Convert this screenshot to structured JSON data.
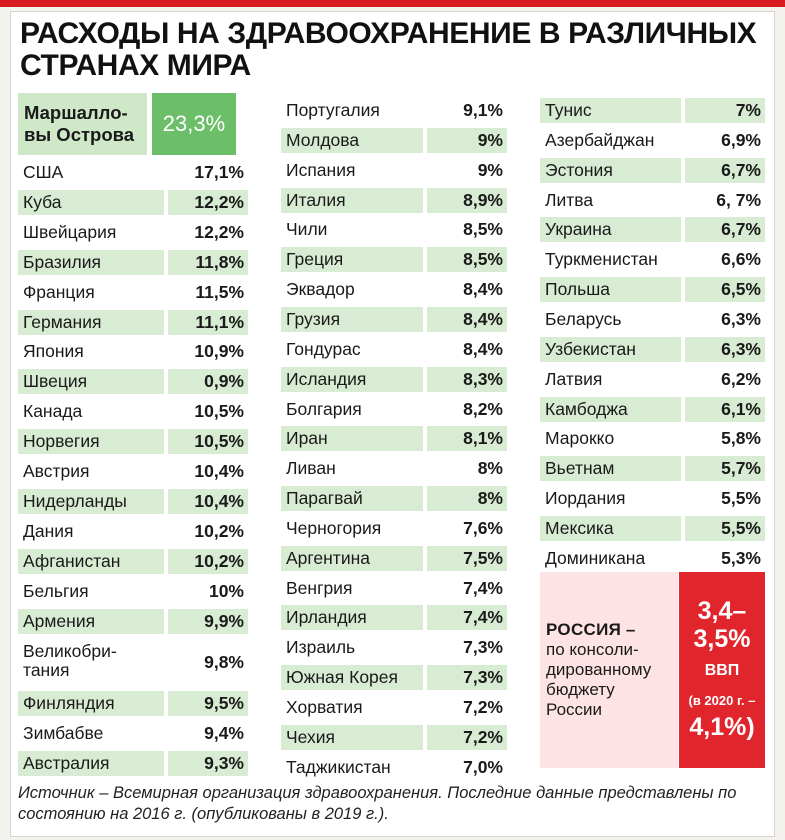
{
  "title": "РАСХОДЫ НА ЗДРАВООХРАНЕНИЕ В РАЗЛИЧНЫХ СТРАНАХ МИРА",
  "chart_data": {
    "type": "table",
    "unit": "%",
    "highlight": {
      "country": "Маршалловы Острова",
      "country_display": "Маршалло-\nвы Острова",
      "value_label": "23,3%",
      "value": 23.3
    },
    "columns": [
      [
        {
          "country": "США",
          "value": 17.1,
          "label": "17,1%",
          "shaded": false
        },
        {
          "country": "Куба",
          "value": 12.2,
          "label": "12,2%",
          "shaded": true
        },
        {
          "country": "Швейцария",
          "value": 12.2,
          "label": "12,2%",
          "shaded": false
        },
        {
          "country": "Бразилия",
          "value": 11.8,
          "label": "11,8%",
          "shaded": true
        },
        {
          "country": "Франция",
          "value": 11.5,
          "label": "11,5%",
          "shaded": false
        },
        {
          "country": "Германия",
          "value": 11.1,
          "label": "11,1%",
          "shaded": true
        },
        {
          "country": "Япония",
          "value": 10.9,
          "label": "10,9%",
          "shaded": false
        },
        {
          "country": "Швеция",
          "value": 0.9,
          "label": "0,9%",
          "shaded": true
        },
        {
          "country": "Канада",
          "value": 10.5,
          "label": "10,5%",
          "shaded": false
        },
        {
          "country": "Норвегия",
          "value": 10.5,
          "label": "10,5%",
          "shaded": true
        },
        {
          "country": "Австрия",
          "value": 10.4,
          "label": "10,4%",
          "shaded": false
        },
        {
          "country": "Нидерланды",
          "value": 10.4,
          "label": "10,4%",
          "shaded": true
        },
        {
          "country": "Дания",
          "value": 10.2,
          "label": "10,2%",
          "shaded": false
        },
        {
          "country": "Афганистан",
          "value": 10.2,
          "label": "10,2%",
          "shaded": true
        },
        {
          "country": "Бельгия",
          "value": 10,
          "label": "10%",
          "shaded": false
        },
        {
          "country": "Армения",
          "value": 9.9,
          "label": "9,9%",
          "shaded": true
        },
        {
          "country": "Великобри-\nтания",
          "value": 9.8,
          "label": "9,8%",
          "shaded": false,
          "two_line": true
        },
        {
          "country": "Финляндия",
          "value": 9.5,
          "label": "9,5%",
          "shaded": true
        },
        {
          "country": "Зимбабве",
          "value": 9.4,
          "label": "9,4%",
          "shaded": false
        },
        {
          "country": "Австралия",
          "value": 9.3,
          "label": "9,3%",
          "shaded": true
        }
      ],
      [
        {
          "country": "Португалия",
          "value": 9.1,
          "label": "9,1%",
          "shaded": false
        },
        {
          "country": "Молдова",
          "value": 9,
          "label": "9%",
          "shaded": true
        },
        {
          "country": "Испания",
          "value": 9,
          "label": "9%",
          "shaded": false
        },
        {
          "country": "Италия",
          "value": 8.9,
          "label": "8,9%",
          "shaded": true
        },
        {
          "country": "Чили",
          "value": 8.5,
          "label": "8,5%",
          "shaded": false
        },
        {
          "country": "Греция",
          "value": 8.5,
          "label": "8,5%",
          "shaded": true
        },
        {
          "country": "Эквадор",
          "value": 8.4,
          "label": "8,4%",
          "shaded": false
        },
        {
          "country": "Грузия",
          "value": 8.4,
          "label": "8,4%",
          "shaded": true
        },
        {
          "country": "Гондурас",
          "value": 8.4,
          "label": "8,4%",
          "shaded": false
        },
        {
          "country": "Исландия",
          "value": 8.3,
          "label": "8,3%",
          "shaded": true
        },
        {
          "country": "Болгария",
          "value": 8.2,
          "label": "8,2%",
          "shaded": false
        },
        {
          "country": "Иран",
          "value": 8.1,
          "label": "8,1%",
          "shaded": true
        },
        {
          "country": "Ливан",
          "value": 8,
          "label": "8%",
          "shaded": false
        },
        {
          "country": "Парагвай",
          "value": 8,
          "label": "8%",
          "shaded": true
        },
        {
          "country": "Черногория",
          "value": 7.6,
          "label": "7,6%",
          "shaded": false
        },
        {
          "country": "Аргентина",
          "value": 7.5,
          "label": "7,5%",
          "shaded": true
        },
        {
          "country": "Венгрия",
          "value": 7.4,
          "label": "7,4%",
          "shaded": false
        },
        {
          "country": "Ирландия",
          "value": 7.4,
          "label": "7,4%",
          "shaded": true
        },
        {
          "country": "Израиль",
          "value": 7.3,
          "label": "7,3%",
          "shaded": false
        },
        {
          "country": "Южная Корея",
          "value": 7.3,
          "label": "7,3%",
          "shaded": true
        },
        {
          "country": "Хорватия",
          "value": 7.2,
          "label": "7,2%",
          "shaded": false
        },
        {
          "country": "Чехия",
          "value": 7.2,
          "label": "7,2%",
          "shaded": true
        },
        {
          "country": "Таджикистан",
          "value": 7.0,
          "label": "7,0%",
          "shaded": false
        }
      ],
      [
        {
          "country": "Тунис",
          "value": 7,
          "label": "7%",
          "shaded": true
        },
        {
          "country": "Азербайджан",
          "value": 6.9,
          "label": "6,9%",
          "shaded": false
        },
        {
          "country": "Эстония",
          "value": 6.7,
          "label": "6,7%",
          "shaded": true
        },
        {
          "country": "Литва",
          "value": 6.7,
          "label": "6, 7%",
          "shaded": false
        },
        {
          "country": "Украина",
          "value": 6.7,
          "label": "6,7%",
          "shaded": true
        },
        {
          "country": "Туркменистан",
          "value": 6.6,
          "label": "6,6%",
          "shaded": false
        },
        {
          "country": "Польша",
          "value": 6.5,
          "label": "6,5%",
          "shaded": true
        },
        {
          "country": "Беларусь",
          "value": 6.3,
          "label": "6,3%",
          "shaded": false
        },
        {
          "country": "Узбекистан",
          "value": 6.3,
          "label": "6,3%",
          "shaded": true
        },
        {
          "country": "Латвия",
          "value": 6.2,
          "label": "6,2%",
          "shaded": false
        },
        {
          "country": "Камбоджа",
          "value": 6.1,
          "label": "6,1%",
          "shaded": true
        },
        {
          "country": "Марокко",
          "value": 5.8,
          "label": "5,8%",
          "shaded": false
        },
        {
          "country": "Вьетнам",
          "value": 5.7,
          "label": "5,7%",
          "shaded": true
        },
        {
          "country": "Иордания",
          "value": 5.5,
          "label": "5,5%",
          "shaded": false
        },
        {
          "country": "Мексика",
          "value": 5.5,
          "label": "5,5%",
          "shaded": true
        },
        {
          "country": "Доминикана",
          "value": 5.3,
          "label": "5,3%",
          "shaded": false
        }
      ]
    ],
    "russia": {
      "country": "РОССИЯ",
      "dash": "–",
      "note": "по консоли-\nдированному\nбюджету\nРоссии",
      "value_line1": "3,4–",
      "value_line2": "3,5%",
      "unit": "ВВП",
      "prev_label": "(в 2020 г. –",
      "prev_value": "4,1%)"
    }
  },
  "footnote": "Источник – Всемирная организация здравоохранения. Последние данные представлены по состоянию на 2016 г. (опубликованы в 2019 г.).",
  "colors": {
    "top_bar": "#d71920",
    "row_shade": "#d8ecd3",
    "highlight_value_bg": "#6cbf68",
    "highlight_name_bg": "#cfe8c8",
    "russia_value_bg": "#e0262c",
    "russia_label_bg": "#fde3e3"
  }
}
